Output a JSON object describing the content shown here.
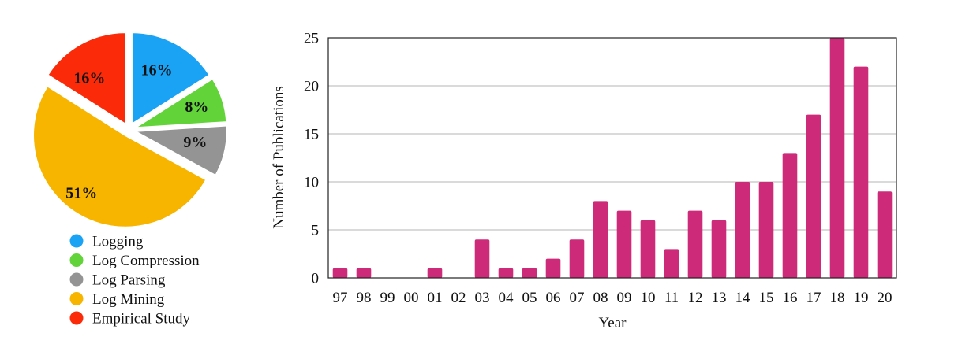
{
  "chart_data": [
    {
      "type": "pie",
      "slices": [
        {
          "label": "Logging",
          "value": 16,
          "display": "16%",
          "color": "#1aa3f5"
        },
        {
          "label": "Log Compression",
          "value": 8,
          "display": "8%",
          "color": "#62d43a"
        },
        {
          "label": "Log Parsing",
          "value": 9,
          "display": "9%",
          "color": "#949494"
        },
        {
          "label": "Log Mining",
          "value": 51,
          "display": "51%",
          "color": "#f7b500"
        },
        {
          "label": "Empirical Study",
          "value": 16,
          "display": "16%",
          "color": "#fb2b0a"
        }
      ],
      "legend_position": "bottom"
    },
    {
      "type": "bar",
      "categories": [
        "97",
        "98",
        "99",
        "00",
        "01",
        "02",
        "03",
        "04",
        "05",
        "06",
        "07",
        "08",
        "09",
        "10",
        "11",
        "12",
        "13",
        "14",
        "15",
        "16",
        "17",
        "18",
        "19",
        "20"
      ],
      "values": [
        1,
        1,
        0,
        0,
        1,
        0,
        4,
        1,
        1,
        2,
        4,
        8,
        7,
        6,
        3,
        7,
        6,
        10,
        10,
        13,
        17,
        25,
        22,
        9
      ],
      "xlabel": "Year",
      "ylabel": "Number of Publications",
      "ylim": [
        0,
        25
      ],
      "yticks": [
        0,
        5,
        10,
        15,
        20,
        25
      ],
      "grid": true,
      "bar_color": "#cd2a7a"
    }
  ]
}
